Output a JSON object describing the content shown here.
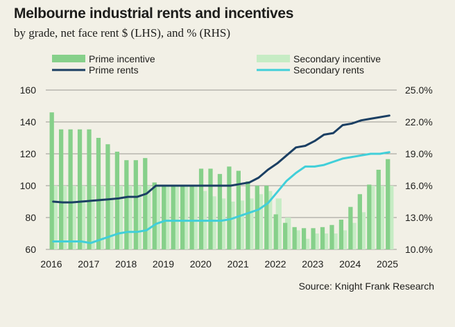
{
  "title": "Melbourne industrial rents and incentives",
  "subtitle": "by grade, net face rent $ (LHS), and % (RHS)",
  "source": "Source: Knight Frank Research",
  "colors": {
    "prime_incentive": "#86d08a",
    "secondary_incentive": "#c6ecc4",
    "prime_rents": "#1b3f63",
    "secondary_rents": "#41cfd9",
    "background": "#f2f0e6",
    "grid": "#1d1d1b"
  },
  "chart_data": {
    "type": "bar",
    "title": "Melbourne industrial rents and incentives",
    "subtitle": "by grade, net face rent $ (LHS), and % (RHS)",
    "x_ticks": [
      "2016",
      "2017",
      "2018",
      "2019",
      "2020",
      "2021",
      "2022",
      "2023",
      "2024",
      "2025"
    ],
    "y_left": {
      "min": 60,
      "max": 160,
      "ticks": [
        "60",
        "80",
        "100",
        "120",
        "140",
        "160"
      ]
    },
    "y_right": {
      "min": 10,
      "max": 25,
      "ticks": [
        "10.0%",
        "13.0%",
        "16.0%",
        "19.0%",
        "22.0%",
        "25.0%"
      ]
    },
    "legend": [
      {
        "label": "Prime incentive",
        "kind": "bar",
        "series": "prime_incentive"
      },
      {
        "label": "Secondary incentive",
        "kind": "bar",
        "series": "secondary_incentive"
      },
      {
        "label": "Prime rents",
        "kind": "line",
        "series": "prime_rents"
      },
      {
        "label": "Secondary rents",
        "kind": "line",
        "series": "secondary_rents"
      }
    ],
    "x": [
      "2016 Q1",
      "2016 Q2",
      "2016 Q3",
      "2016 Q4",
      "2017 Q1",
      "2017 Q2",
      "2017 Q3",
      "2017 Q4",
      "2018 Q1",
      "2018 Q2",
      "2018 Q3",
      "2018 Q4",
      "2019 Q1",
      "2019 Q2",
      "2019 Q3",
      "2019 Q4",
      "2020 Q1",
      "2020 Q2",
      "2020 Q3",
      "2020 Q4",
      "2021 Q1",
      "2021 Q2",
      "2021 Q3",
      "2021 Q4",
      "2022 Q1",
      "2022 Q2",
      "2022 Q3",
      "2022 Q4",
      "2023 Q1",
      "2023 Q2",
      "2023 Q3",
      "2023 Q4",
      "2024 Q1",
      "2024 Q2",
      "2024 Q3",
      "2024 Q4",
      "2025 Q1"
    ],
    "series": [
      {
        "name": "Prime incentive",
        "type": "bar",
        "axis": "right",
        "values": [
          22.9,
          21.3,
          21.3,
          21.3,
          21.3,
          20.5,
          19.9,
          19.2,
          18.4,
          18.4,
          18.6,
          16.3,
          16.0,
          16.0,
          16.0,
          16.0,
          17.6,
          17.6,
          17.1,
          17.8,
          17.4,
          16.4,
          16.0,
          16.0,
          13.3,
          12.5,
          12.1,
          12.0,
          12.0,
          12.1,
          12.3,
          12.8,
          14.0,
          15.2,
          16.1,
          17.5,
          18.5
        ],
        "name_key": "prime_incentive"
      },
      {
        "name": "Secondary incentive",
        "type": "bar",
        "axis": "right",
        "values": [
          16.0,
          16.0,
          16.0,
          16.0,
          16.0,
          16.0,
          16.0,
          16.0,
          16.0,
          16.0,
          16.0,
          16.0,
          16.0,
          16.0,
          16.0,
          16.0,
          15.5,
          15.0,
          14.8,
          14.5,
          14.6,
          14.8,
          15.2,
          15.5,
          14.8,
          13.0,
          11.8,
          11.0,
          11.5,
          11.5,
          11.5,
          11.8,
          12.5,
          13.5,
          16.0,
          16.0,
          16.0
        ],
        "name_key": "secondary_incentive"
      },
      {
        "name": "Prime rents",
        "type": "line",
        "axis": "left",
        "values": [
          90,
          89.5,
          89.5,
          90,
          90.5,
          91,
          91.5,
          92,
          93,
          93,
          95,
          100,
          100,
          100,
          100,
          100,
          100,
          100,
          100,
          100,
          101,
          102,
          105,
          110,
          114,
          119,
          124,
          125,
          128,
          132,
          133,
          138,
          139,
          141,
          142,
          143,
          144
        ],
        "name_key": "prime_rents"
      },
      {
        "name": "Secondary rents",
        "type": "line",
        "axis": "left",
        "values": [
          65,
          65,
          65,
          65,
          64,
          66,
          68,
          70,
          71,
          71,
          72,
          76,
          78,
          78,
          78,
          78,
          78,
          78,
          78,
          79,
          81,
          83,
          85,
          89,
          96,
          103,
          108,
          112,
          112,
          113,
          115,
          117,
          118,
          119,
          120,
          120,
          121
        ],
        "name_key": "secondary_rents"
      }
    ]
  }
}
